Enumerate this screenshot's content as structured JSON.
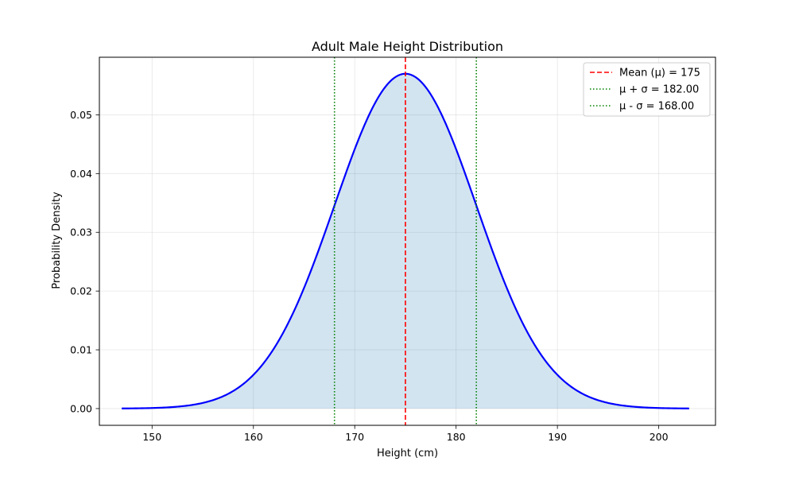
{
  "chart_data": {
    "type": "line",
    "title": "Adult Male Height Distribution",
    "xlabel": "Height (cm)",
    "ylabel": "Probability Density",
    "xlim": [
      144.8,
      205.6
    ],
    "ylim": [
      -0.00285,
      0.0598
    ],
    "xticks": [
      150,
      160,
      170,
      180,
      190,
      200
    ],
    "yticks": [
      0.0,
      0.01,
      0.02,
      0.03,
      0.04,
      0.05
    ],
    "xtick_labels": [
      "150",
      "160",
      "170",
      "180",
      "190",
      "200"
    ],
    "ytick_labels": [
      "0.00",
      "0.01",
      "0.02",
      "0.03",
      "0.04",
      "0.05"
    ],
    "grid": true,
    "legend_position": "top-right",
    "distribution": {
      "mean": 175,
      "std": 7,
      "x_min": 147,
      "x_max": 203
    },
    "series": [
      {
        "role": "density-curve",
        "color": "#0000ff"
      },
      {
        "role": "density-fill",
        "color": "#1f77b4"
      }
    ],
    "reference_lines": [
      {
        "x": 175,
        "label": "Mean (μ) = 175",
        "color": "#ff0000",
        "style": "dashed"
      },
      {
        "x": 182,
        "label": "μ + σ = 182.00",
        "color": "#008000",
        "style": "dotted"
      },
      {
        "x": 168,
        "label": "μ - σ = 168.00",
        "color": "#008000",
        "style": "dotted"
      }
    ]
  }
}
